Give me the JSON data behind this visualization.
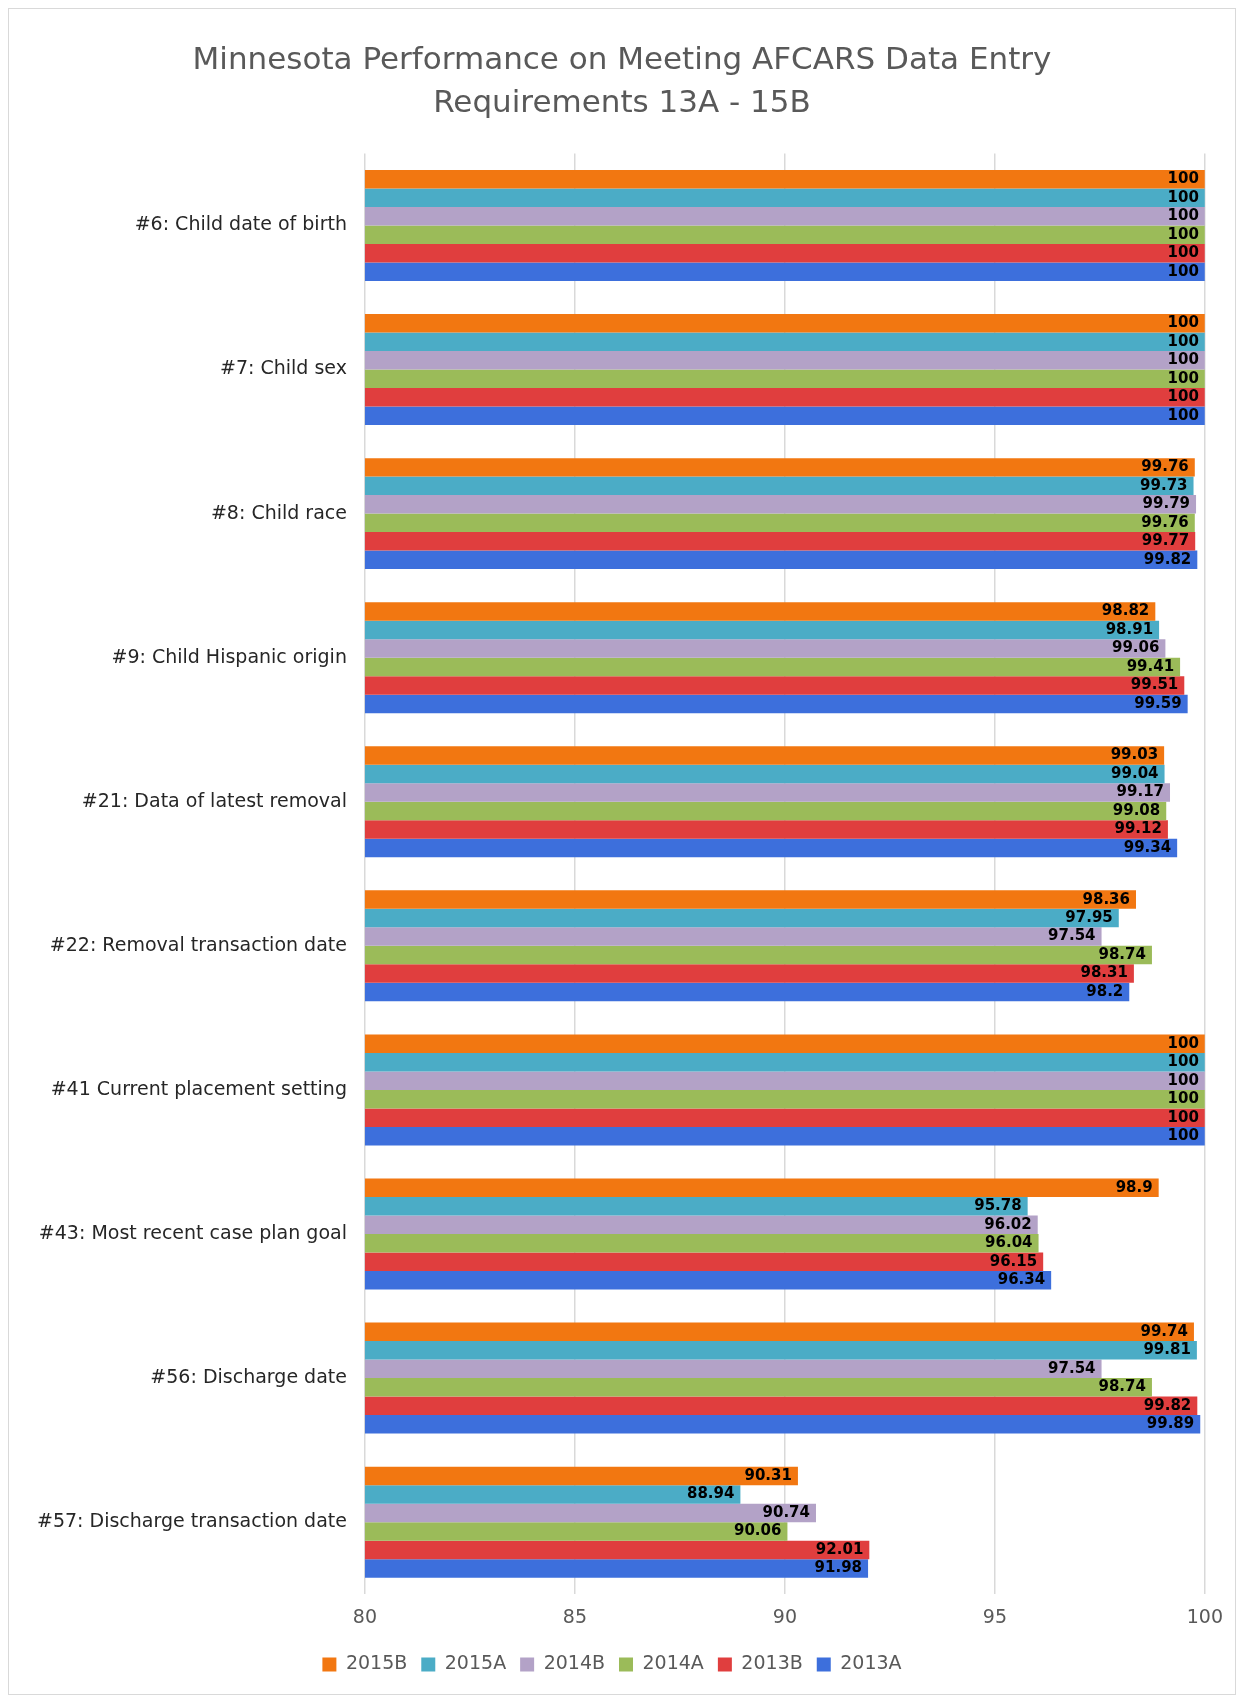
{
  "chart_data": {
    "type": "bar",
    "orientation": "horizontal",
    "title": "Minnesota Performance on Meeting AFCARS Data Entry Requirements 13A - 15B",
    "categories": [
      "#6: Child date of birth",
      "#7: Child sex",
      "#8: Child race",
      "#9: Child Hispanic origin",
      "#21: Data of latest removal",
      "#22: Removal transaction date",
      "#41 Current placement setting",
      "#43: Most recent case plan goal",
      "#56: Discharge date",
      "#57: Discharge transaction date"
    ],
    "series": [
      {
        "name": "2015B",
        "color": "#f27711",
        "values": [
          100,
          100,
          99.76,
          98.82,
          99.03,
          98.36,
          100,
          98.9,
          99.74,
          90.31
        ]
      },
      {
        "name": "2015A",
        "color": "#4bacc6",
        "values": [
          100,
          100,
          99.73,
          98.91,
          99.04,
          97.95,
          100,
          95.78,
          99.81,
          88.94
        ]
      },
      {
        "name": "2014B",
        "color": "#b3a2c7",
        "values": [
          100,
          100,
          99.79,
          99.06,
          99.17,
          97.54,
          100,
          96.02,
          97.54,
          90.74
        ]
      },
      {
        "name": "2014A",
        "color": "#9bbb59",
        "values": [
          100,
          100,
          99.76,
          99.41,
          99.08,
          98.74,
          100,
          96.04,
          98.74,
          90.06
        ]
      },
      {
        "name": "2013B",
        "color": "#e03e3e",
        "values": [
          100,
          100,
          99.77,
          99.51,
          99.12,
          98.31,
          100,
          96.15,
          99.82,
          92.01
        ]
      },
      {
        "name": "2013A",
        "color": "#3d6fdc",
        "values": [
          100,
          100,
          99.82,
          99.59,
          99.34,
          98.2,
          100,
          96.34,
          99.89,
          91.98
        ]
      }
    ],
    "xlim": [
      80,
      100
    ],
    "xticks": [
      80,
      85,
      90,
      95,
      100
    ],
    "grid": "x",
    "legend": "bottom",
    "data_labels": true
  }
}
